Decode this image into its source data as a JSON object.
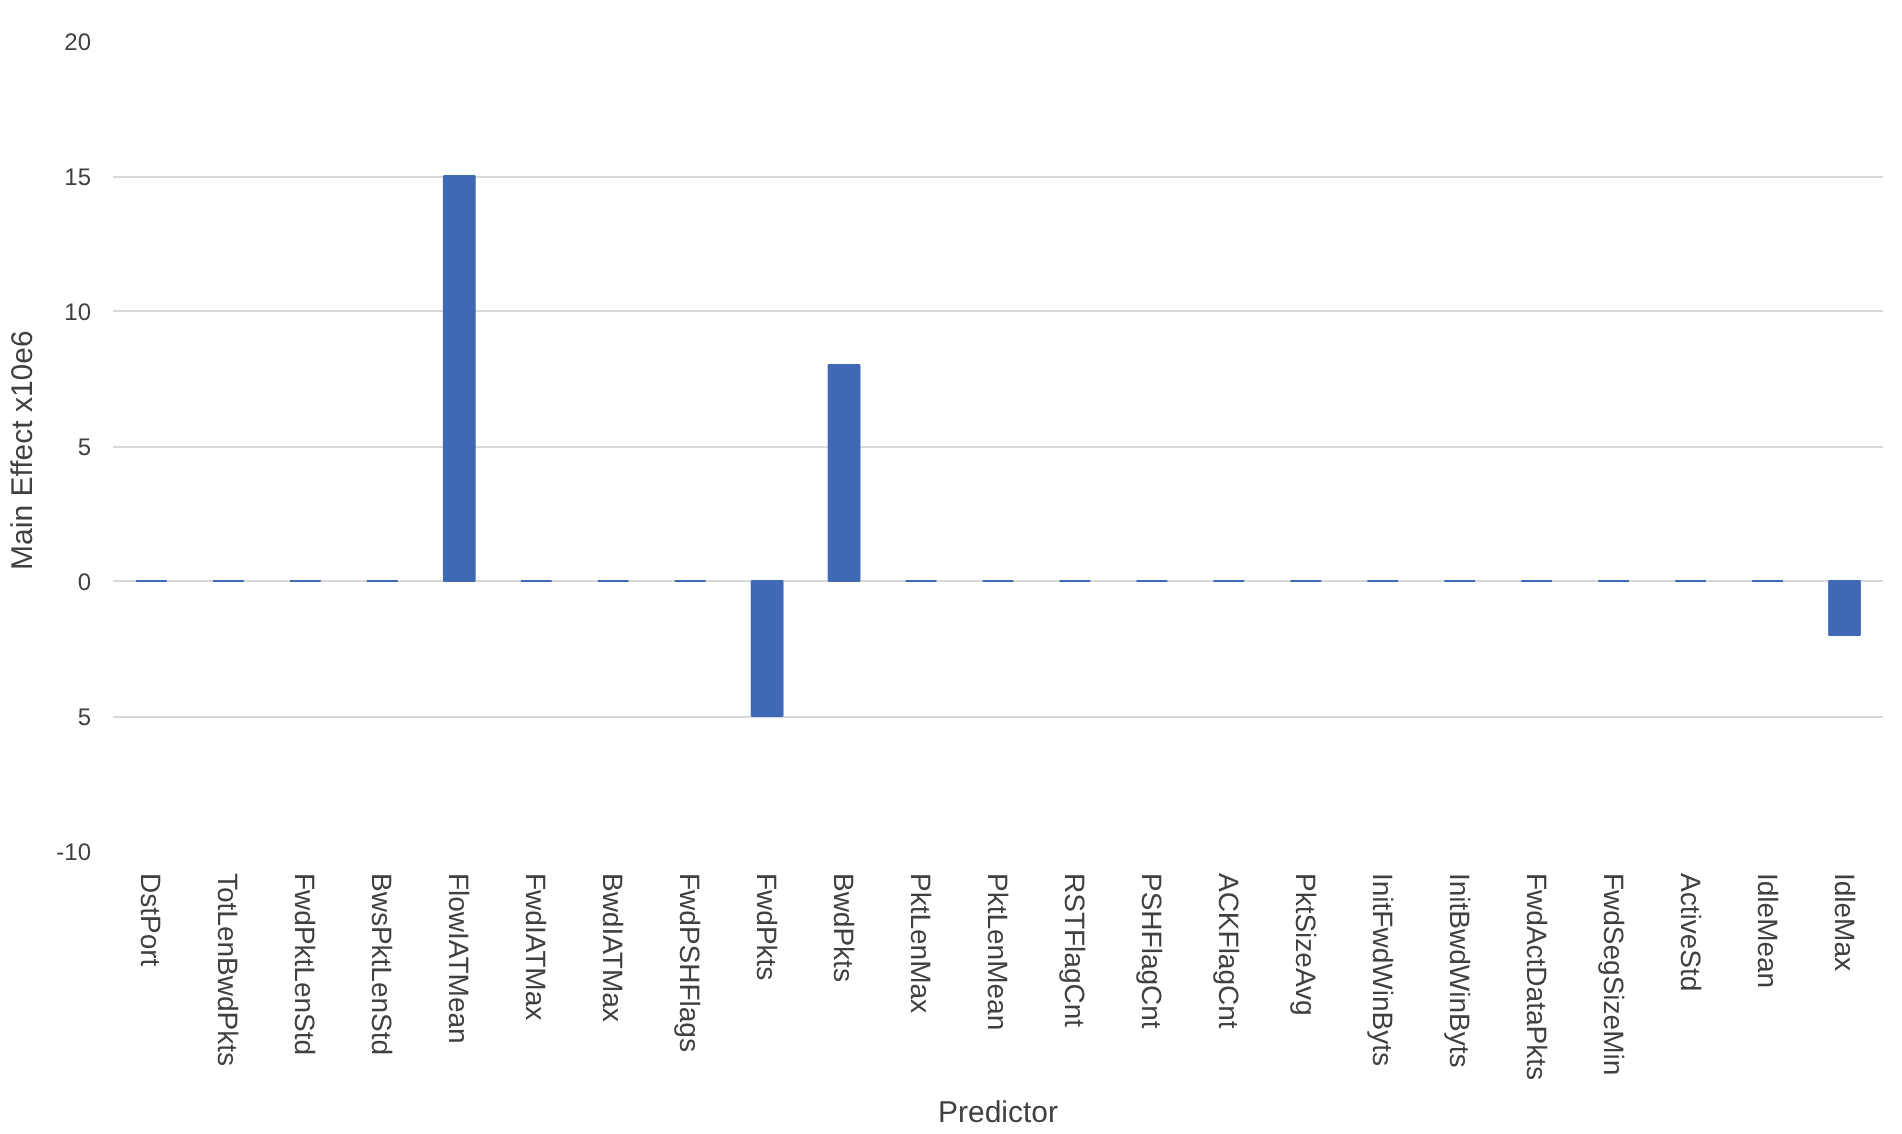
{
  "chart_data": {
    "type": "bar",
    "xlabel": "Predictor",
    "ylabel": "Main Effect  x10e6",
    "categories": [
      "DstPort",
      "TotLenBwdPkts",
      "FwdPktLenStd",
      "BwsPktLenStd",
      "FlowIATMean",
      "FwdIATMax",
      "BwdIATMax",
      "FwdPSHFlags",
      "FwdPkts",
      "BwdPkts",
      "PktLenMax",
      "PktLenMean",
      "RSTFlagCnt",
      "PSHFlagCnt",
      "ACKFlagCnt",
      "PktSizeAvg",
      "InitFwdWinByts",
      "InitBwdWinByts",
      "FwdActDataPkts",
      "FwdSegSizeMin",
      "ActiveStd",
      "IdleMean",
      "IdleMax"
    ],
    "values": [
      0,
      0,
      0,
      0,
      15,
      0,
      0,
      0,
      -5,
      8,
      0,
      0,
      0,
      0,
      0,
      0,
      0,
      0,
      0,
      0,
      0,
      0,
      -2
    ],
    "color": "#3f68b5",
    "ylim": [
      -10,
      20
    ],
    "yticks": [
      20,
      15,
      10,
      5,
      0,
      {
        "value": -5,
        "label": "5"
      },
      -10
    ],
    "grid": "y"
  }
}
